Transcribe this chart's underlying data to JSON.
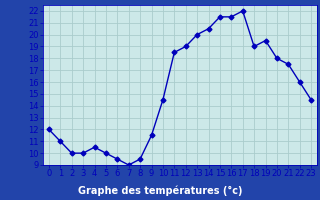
{
  "x": [
    0,
    1,
    2,
    3,
    4,
    5,
    6,
    7,
    8,
    9,
    10,
    11,
    12,
    13,
    14,
    15,
    16,
    17,
    18,
    19,
    20,
    21,
    22,
    23
  ],
  "y": [
    12,
    11,
    10,
    10,
    10.5,
    10,
    9.5,
    9,
    9.5,
    11.5,
    14.5,
    18.5,
    19,
    20,
    20.5,
    21.5,
    21.5,
    22,
    19,
    19.5,
    18,
    17.5,
    16,
    14.5
  ],
  "line_color": "#0000bb",
  "marker": "D",
  "marker_size": 2.5,
  "bg_color": "#cce8e8",
  "grid_color": "#aacccc",
  "axis_bg": "#cce8e8",
  "bottom_bar_color": "#2244aa",
  "xlabel": "Graphe des températures (°c)",
  "xlabel_color": "#ffffff",
  "xlabel_fontsize": 7,
  "tick_color": "#0000bb",
  "tick_fontsize": 6,
  "ylim": [
    9,
    22.5
  ],
  "xlim": [
    -0.5,
    23.5
  ],
  "yticks": [
    9,
    10,
    11,
    12,
    13,
    14,
    15,
    16,
    17,
    18,
    19,
    20,
    21,
    22
  ],
  "xticks": [
    0,
    1,
    2,
    3,
    4,
    5,
    6,
    7,
    8,
    9,
    10,
    11,
    12,
    13,
    14,
    15,
    16,
    17,
    18,
    19,
    20,
    21,
    22,
    23
  ]
}
